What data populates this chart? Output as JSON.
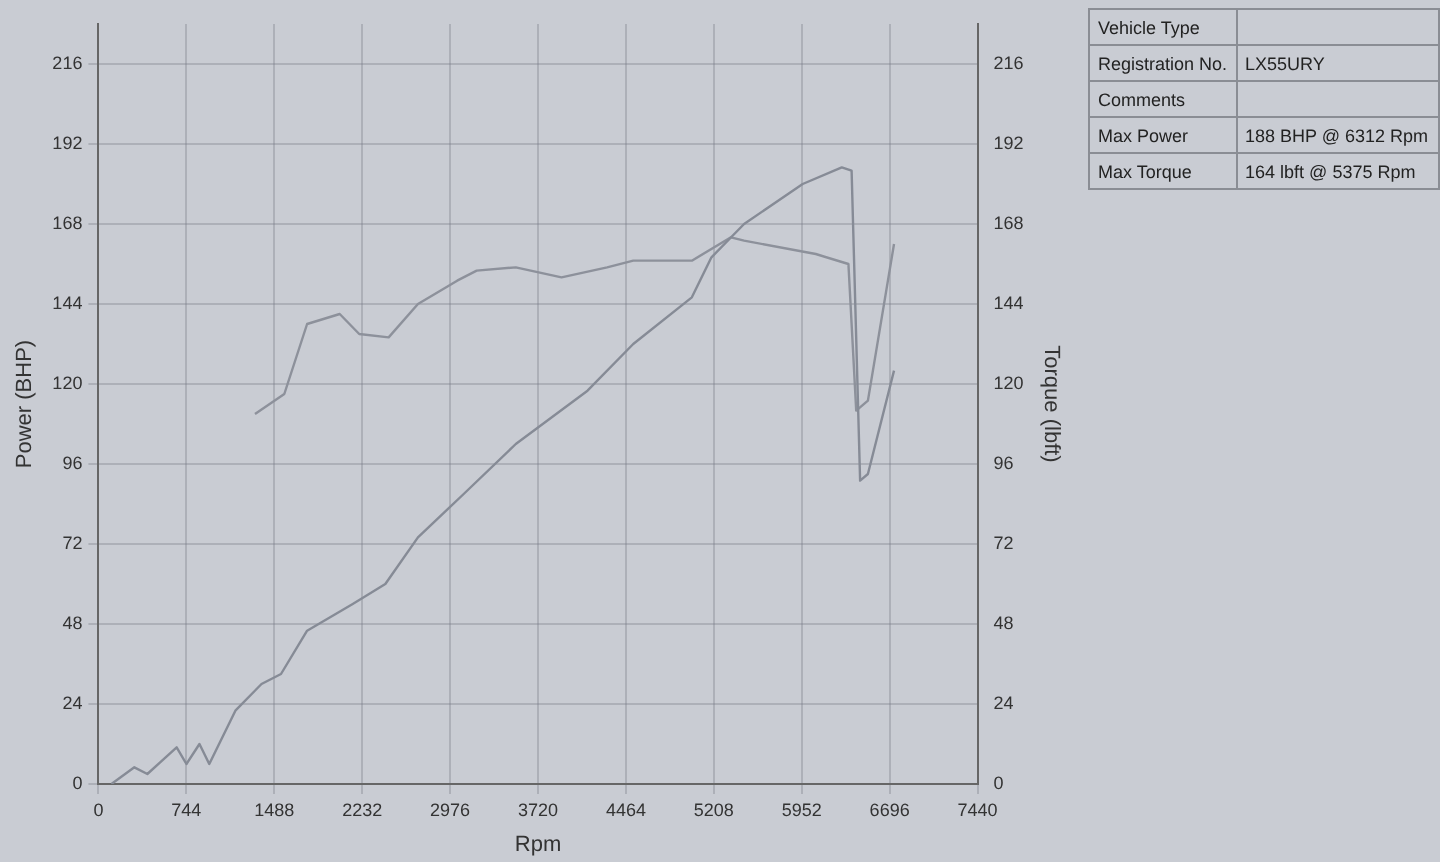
{
  "chart_data": {
    "type": "line",
    "xlabel": "Rpm",
    "ylabel": "Power (BHP)",
    "y2label": "Torque (lbft)",
    "xlim": [
      0,
      7440
    ],
    "xticks": [
      0,
      744,
      1488,
      2232,
      2976,
      3720,
      4464,
      5208,
      5952,
      6696,
      7440
    ],
    "ylim": [
      0,
      228
    ],
    "yticks": [
      0,
      24,
      48,
      72,
      96,
      120,
      144,
      168,
      192,
      216
    ],
    "y2lim": [
      0,
      228
    ],
    "y2ticks": [
      0,
      24,
      48,
      72,
      96,
      120,
      144,
      168,
      192,
      216
    ],
    "grid": true,
    "legend": false,
    "marker": "none",
    "line_style": "solid",
    "series": [
      {
        "color": "#868b96",
        "x": [
          110,
          304,
          414,
          662,
          745,
          855,
          938,
          1159,
          1380,
          1545,
          1766,
          2152,
          2428,
          2704,
          3091,
          3532,
          4139,
          4526,
          5022,
          5188,
          5464,
          5960,
          6291,
          6374,
          6446,
          6512,
          6733
        ],
        "values": [
          0,
          5,
          3,
          11,
          6,
          12,
          6,
          22,
          30,
          33,
          46,
          54,
          60,
          74,
          87,
          102,
          118,
          132,
          146,
          158,
          168,
          180,
          185,
          184,
          91,
          93,
          124
        ]
      },
      {
        "color": "#8d919b",
        "axis": "y2",
        "x": [
          1325,
          1573,
          1766,
          2042,
          2207,
          2456,
          2704,
          3036,
          3201,
          3532,
          3919,
          4305,
          4526,
          5022,
          5353,
          5464,
          6071,
          6347,
          6413,
          6512,
          6733
        ],
        "values": [
          111,
          117,
          138,
          141,
          135,
          134,
          144,
          151,
          154,
          155,
          152,
          155,
          157,
          157,
          164,
          163,
          159,
          156,
          112,
          115,
          162
        ]
      }
    ],
    "annotations": [
      "Vehicle Type",
      "Registration No.\tLX55URY",
      "Comments",
      "Max Power\t188 BHP @ 6312 Rpm",
      "Max Torque\t164 lbft @ 5375 Rpm"
    ]
  }
}
